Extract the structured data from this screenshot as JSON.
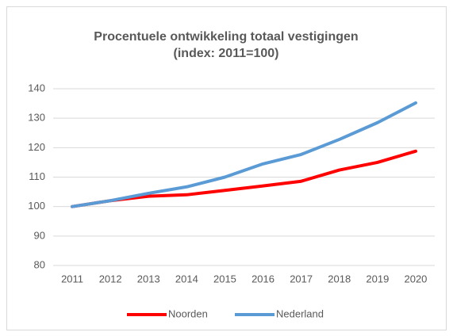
{
  "chart_data": {
    "type": "line",
    "title": "Procentuele ontwikkeling totaal vestigingen",
    "subtitle": "(index: 2011=100)",
    "categories": [
      "2011",
      "2012",
      "2013",
      "2014",
      "2015",
      "2016",
      "2017",
      "2018",
      "2019",
      "2020"
    ],
    "series": [
      {
        "name": "Noorden",
        "color": "#ff0000",
        "values": [
          100,
          102,
          103.5,
          104,
          105.5,
          107,
          108.6,
          112.4,
          115,
          118.8
        ]
      },
      {
        "name": "Nederland",
        "color": "#5b9bd5",
        "values": [
          100,
          102,
          104.5,
          106.7,
          110,
          114.5,
          117.7,
          122.8,
          128.5,
          135.2
        ]
      }
    ],
    "ylim": [
      80,
      140
    ],
    "yticks": [
      80,
      90,
      100,
      110,
      120,
      130,
      140
    ],
    "grid": true,
    "legend": "bottom"
  }
}
